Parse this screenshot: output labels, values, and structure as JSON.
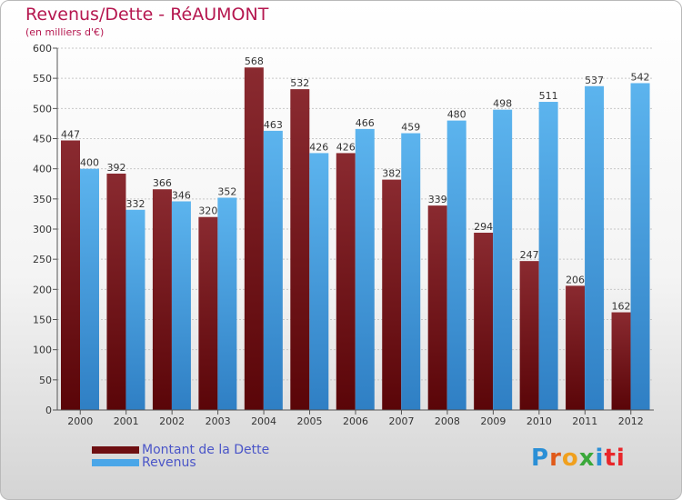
{
  "title": "Revenus/Dette - RéAUMONT",
  "subtitle": "(en milliers d'€)",
  "colors": {
    "dette": "#6e0f12",
    "revenus": "#4aa6e8",
    "title": "#b5174f"
  },
  "legend": [
    {
      "label": "Montant de la Dette",
      "color": "#6e0f12"
    },
    {
      "label": "Revenus",
      "color": "#4aa6e8"
    }
  ],
  "logo": {
    "p": "P",
    "r": "r",
    "o": "o",
    "x": "x",
    "i": "i",
    "t": "ti"
  },
  "chart_data": {
    "type": "bar",
    "title": "Revenus/Dette - RéAUMONT",
    "ylabel": "(en milliers d'€)",
    "categories": [
      "2000",
      "2001",
      "2002",
      "2003",
      "2004",
      "2005",
      "2006",
      "2007",
      "2008",
      "2009",
      "2010",
      "2011",
      "2012"
    ],
    "series": [
      {
        "name": "Montant de la Dette",
        "values": [
          447,
          392,
          366,
          320,
          568,
          532,
          426,
          382,
          339,
          294,
          247,
          206,
          162
        ]
      },
      {
        "name": "Revenus",
        "values": [
          400,
          332,
          346,
          352,
          463,
          426,
          466,
          459,
          480,
          498,
          511,
          537,
          542
        ]
      }
    ],
    "ylim": [
      0,
      600
    ],
    "yticks": [
      0,
      50,
      100,
      150,
      200,
      250,
      300,
      350,
      400,
      450,
      500,
      550,
      600
    ],
    "grid": true,
    "legend_position": "bottom-left"
  }
}
